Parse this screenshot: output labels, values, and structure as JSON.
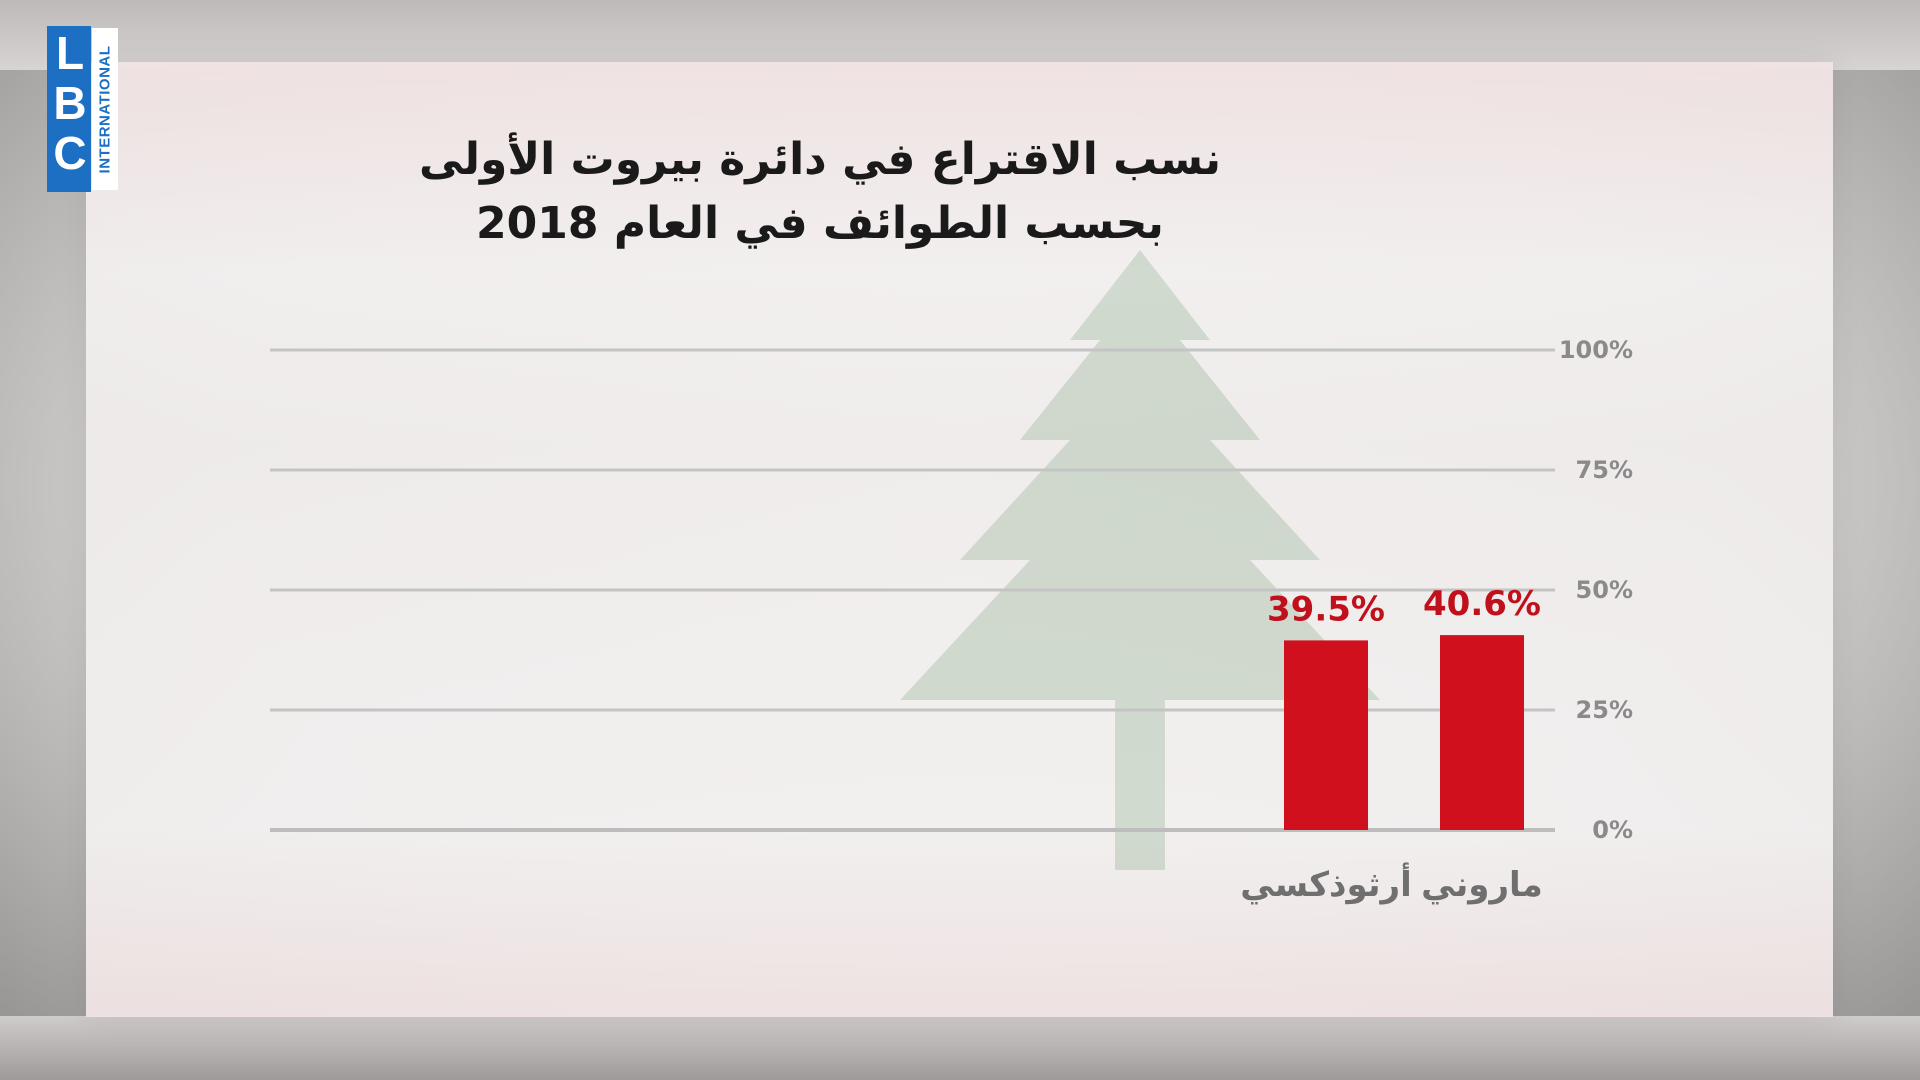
{
  "logo": {
    "letters": [
      "L",
      "B",
      "C"
    ],
    "subtitle": "INTERNATIONAL",
    "brand_color": "#1d6fc4"
  },
  "chart_data": {
    "type": "bar",
    "title": "نسب الاقتراع في دائرة بيروت الأولى",
    "subtitle": "بحسب الطوائف في العام 2018",
    "categories": [
      "ماروني",
      "أرثوذكسي"
    ],
    "values": [
      40.6,
      39.5
    ],
    "value_labels": [
      "40.6%",
      "39.5%"
    ],
    "y_ticks": [
      0,
      25,
      50,
      75,
      100
    ],
    "y_tick_labels": [
      "0%",
      "25%",
      "50%",
      "75%",
      "100%"
    ],
    "ylim": [
      0,
      100
    ],
    "y_axis_side": "right",
    "grid": true,
    "bar_color": "#d1101d",
    "value_label_color": "#c0101c"
  }
}
